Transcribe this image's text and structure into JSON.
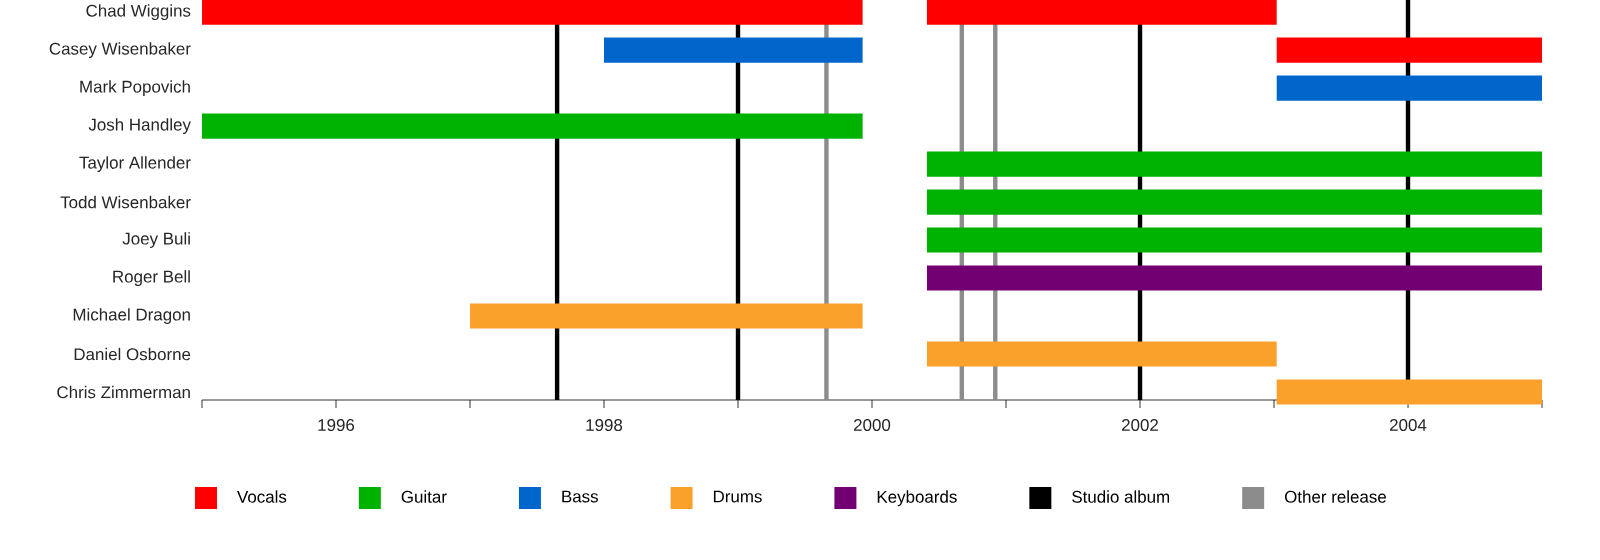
{
  "chart_data": {
    "type": "bar",
    "orientation": "horizontal",
    "categories": [
      "Chad Wiggins",
      "Casey Wisenbaker",
      "Mark Popovich",
      "Josh Handley",
      "Taylor Allender",
      "Todd Wisenbaker",
      "Joey Buli",
      "Roger Bell",
      "Michael Dragon",
      "Daniel Osborne",
      "Chris Zimmerman"
    ],
    "series": [
      {
        "name": "Vocals",
        "color": "#ff0000",
        "values": [
          4.93,
          1.98,
          null,
          null,
          null,
          null,
          null,
          null,
          null,
          null,
          null
        ],
        "base": [
          1995,
          2003.02,
          null,
          null,
          null,
          null,
          null,
          null,
          null,
          null,
          null
        ]
      },
      {
        "color": "#ff0000",
        "values": [
          2.61,
          null,
          null,
          null,
          null,
          null,
          null,
          null,
          null,
          null,
          null
        ],
        "base": [
          2000.41,
          null,
          null,
          null,
          null,
          null,
          null,
          null,
          null,
          null,
          null
        ]
      },
      {
        "name": "Guitar",
        "color": "#00b200",
        "values": [
          null,
          null,
          null,
          4.93,
          4.59,
          4.59,
          4.59,
          null,
          null,
          null,
          null
        ],
        "base": [
          null,
          null,
          null,
          1995,
          2000.41,
          2000.41,
          2000.41,
          null,
          null,
          null,
          null
        ]
      },
      {
        "name": "Bass",
        "color": "#0066cc",
        "values": [
          null,
          1.93,
          1.98,
          null,
          null,
          null,
          null,
          null,
          null,
          null,
          null
        ],
        "base": [
          null,
          1998.0,
          2003.02,
          null,
          null,
          null,
          null,
          null,
          null,
          null,
          null
        ]
      },
      {
        "name": "Drums",
        "color": "#f9a12a",
        "values": [
          null,
          null,
          null,
          null,
          null,
          null,
          null,
          null,
          2.93,
          2.61,
          1.98
        ],
        "base": [
          null,
          null,
          null,
          null,
          null,
          null,
          null,
          null,
          1997.0,
          2000.41,
          2003.02
        ]
      },
      {
        "name": "Keyboards",
        "color": "#730073",
        "values": [
          null,
          null,
          null,
          null,
          null,
          null,
          null,
          4.59,
          null,
          null,
          null
        ],
        "base": [
          null,
          null,
          null,
          null,
          null,
          null,
          null,
          2000.41,
          null,
          null,
          null
        ]
      }
    ],
    "xlim": [
      1995,
      2005
    ],
    "xticks": [
      {
        "value": 1995,
        "label": null
      },
      1996,
      {
        "value": 1997,
        "label": null
      },
      1998,
      {
        "value": 1999,
        "label": null
      },
      2000,
      {
        "value": 2001,
        "label": null
      },
      2002,
      {
        "value": 2003,
        "label": null
      },
      2004,
      {
        "value": 2005,
        "label": null
      }
    ],
    "ref_lines": [
      {
        "axis": "x",
        "value": 1997.65,
        "label": "Studio album",
        "color": "#000000"
      },
      {
        "axis": "x",
        "value": 1999.0,
        "color": "#000000"
      },
      {
        "axis": "x",
        "value": 2002.0,
        "color": "#000000"
      },
      {
        "axis": "x",
        "value": 2004.0,
        "color": "#000000"
      },
      {
        "axis": "x",
        "value": 1999.66,
        "label": "Other release",
        "color": "#8c8c8c"
      },
      {
        "axis": "x",
        "value": 2000.67,
        "color": "#8c8c8c"
      },
      {
        "axis": "x",
        "value": 2000.92,
        "color": "#8c8c8c"
      }
    ],
    "grid": false,
    "legend": "bottom"
  }
}
